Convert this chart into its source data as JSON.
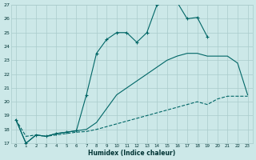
{
  "xlabel": "Humidex (Indice chaleur)",
  "bg_color": "#cce8e8",
  "grid_color": "#aacccc",
  "line_color": "#006666",
  "xlim_min": -0.5,
  "xlim_max": 23.5,
  "ylim_min": 17,
  "ylim_max": 27,
  "xtick_labels": [
    "0",
    "1",
    "2",
    "3",
    "4",
    "5",
    "6",
    "7",
    "8",
    "9",
    "10",
    "11",
    "12",
    "13",
    "14",
    "15",
    "16",
    "17",
    "18",
    "19",
    "20",
    "21",
    "22",
    "23"
  ],
  "ytick_labels": [
    "17",
    "18",
    "19",
    "20",
    "21",
    "22",
    "23",
    "24",
    "25",
    "26",
    "27"
  ],
  "line1_x": [
    0,
    1,
    2,
    3,
    4,
    5,
    6,
    7,
    8,
    9,
    10,
    11,
    12,
    13,
    14,
    15,
    16,
    17,
    18,
    19
  ],
  "line1_y": [
    18.7,
    17.0,
    17.6,
    17.5,
    17.7,
    17.8,
    17.9,
    20.5,
    23.5,
    24.5,
    25.0,
    25.0,
    24.3,
    25.0,
    27.0,
    27.2,
    27.2,
    26.0,
    26.1,
    24.7
  ],
  "line2_x": [
    0,
    1,
    2,
    3,
    4,
    5,
    6,
    7,
    8,
    9,
    10,
    11,
    12,
    13,
    14,
    15,
    16,
    17,
    18,
    19,
    20,
    21,
    22,
    23
  ],
  "line2_y": [
    18.7,
    17.0,
    17.6,
    17.5,
    17.7,
    17.8,
    17.9,
    18.0,
    18.5,
    19.5,
    20.5,
    21.0,
    21.5,
    22.0,
    22.5,
    23.0,
    23.3,
    23.5,
    23.5,
    23.3,
    23.3,
    23.3,
    22.8,
    20.5
  ],
  "line3_x": [
    0,
    1,
    2,
    3,
    4,
    5,
    6,
    7,
    8,
    9,
    10,
    11,
    12,
    13,
    14,
    15,
    16,
    17,
    18,
    19,
    20,
    21,
    22,
    23
  ],
  "line3_y": [
    18.7,
    17.5,
    17.6,
    17.5,
    17.6,
    17.7,
    17.8,
    17.85,
    18.0,
    18.2,
    18.4,
    18.6,
    18.8,
    19.0,
    19.2,
    19.4,
    19.6,
    19.8,
    20.0,
    19.8,
    20.2,
    20.4,
    20.4,
    20.4
  ]
}
